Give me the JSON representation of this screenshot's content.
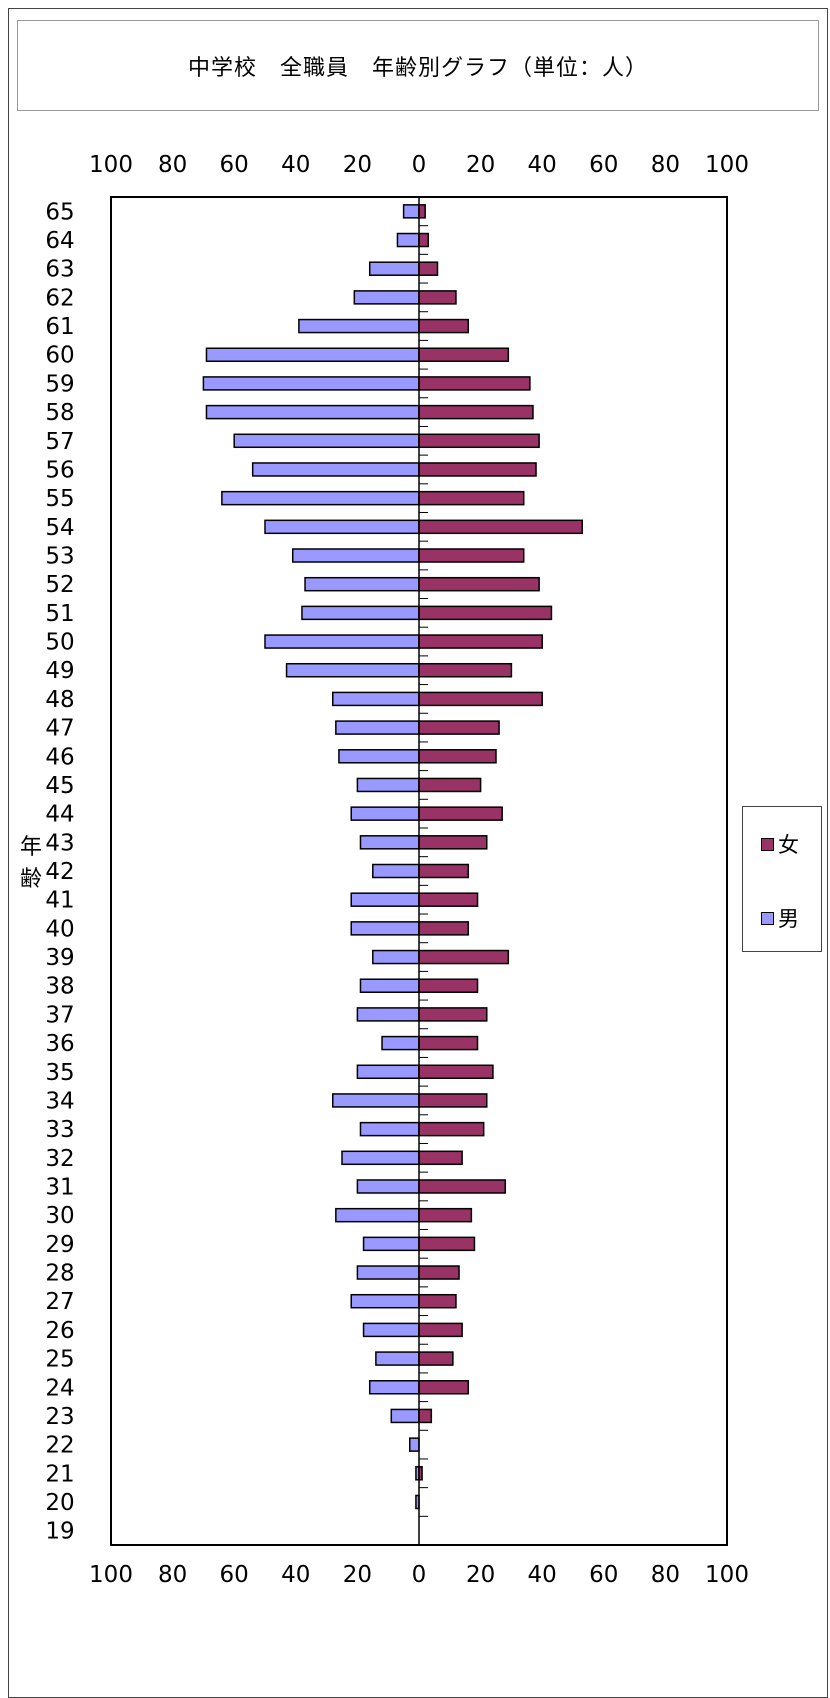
{
  "title": "中学校　全職員　年齢別グラフ（単位：人）",
  "y_axis_title": "年齢",
  "legend": {
    "items": [
      {
        "label": "女",
        "color": "#993366"
      },
      {
        "label": "男",
        "color": "#9999ff"
      }
    ]
  },
  "chart_data": {
    "type": "bar",
    "orientation": "horizontal",
    "subtype": "population-pyramid",
    "categories": [
      "65",
      "64",
      "63",
      "62",
      "61",
      "60",
      "59",
      "58",
      "57",
      "56",
      "55",
      "54",
      "53",
      "52",
      "51",
      "50",
      "49",
      "48",
      "47",
      "46",
      "45",
      "44",
      "43",
      "42",
      "41",
      "40",
      "39",
      "38",
      "37",
      "36",
      "35",
      "34",
      "33",
      "32",
      "31",
      "30",
      "29",
      "28",
      "27",
      "26",
      "25",
      "24",
      "23",
      "22",
      "21",
      "20",
      "19"
    ],
    "series": [
      {
        "name": "男",
        "color": "#9999ff",
        "side": "left",
        "values": [
          5,
          7,
          16,
          21,
          39,
          69,
          70,
          69,
          60,
          54,
          64,
          50,
          41,
          37,
          38,
          50,
          43,
          28,
          27,
          26,
          20,
          22,
          19,
          15,
          22,
          22,
          15,
          19,
          20,
          12,
          20,
          28,
          19,
          25,
          20,
          27,
          18,
          20,
          22,
          18,
          14,
          16,
          9,
          3,
          1,
          1,
          0
        ]
      },
      {
        "name": "女",
        "color": "#993366",
        "side": "right",
        "values": [
          2,
          3,
          6,
          12,
          16,
          29,
          36,
          37,
          39,
          38,
          34,
          53,
          34,
          39,
          43,
          40,
          30,
          40,
          26,
          25,
          20,
          27,
          22,
          16,
          19,
          16,
          29,
          19,
          22,
          19,
          24,
          22,
          21,
          14,
          28,
          17,
          18,
          13,
          12,
          14,
          11,
          16,
          4,
          0,
          1,
          0,
          0
        ]
      }
    ],
    "x_ticks_labels": [
      "100",
      "80",
      "60",
      "40",
      "20",
      "0",
      "20",
      "40",
      "60",
      "80",
      "100"
    ],
    "xlim": [
      -100,
      100
    ],
    "grid": false,
    "legend_position": "right"
  }
}
